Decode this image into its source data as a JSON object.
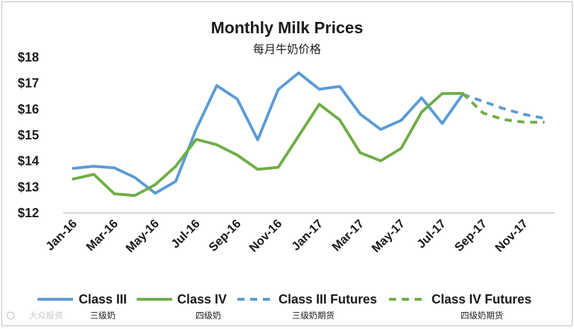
{
  "chart_data": {
    "type": "line",
    "title": "Monthly Milk Prices",
    "subtitle": "每月牛奶价格",
    "ylim": [
      12,
      18
    ],
    "y_ticks": [
      "$12",
      "$13",
      "$14",
      "$15",
      "$16",
      "$17",
      "$18"
    ],
    "y_tick_values": [
      12,
      13,
      14,
      15,
      16,
      17,
      18
    ],
    "categories": [
      "Jan-16",
      "Feb-16",
      "Mar-16",
      "Apr-16",
      "May-16",
      "Jun-16",
      "Jul-16",
      "Aug-16",
      "Sep-16",
      "Oct-16",
      "Nov-16",
      "Dec-16",
      "Jan-17",
      "Feb-17",
      "Mar-17",
      "Apr-17",
      "May-17",
      "Jun-17",
      "Jul-17",
      "Aug-17",
      "Sep-17",
      "Oct-17",
      "Nov-17",
      "Dec-17"
    ],
    "x_tick_labels": [
      "Jan-16",
      "Mar-16",
      "May-16",
      "Jul-16",
      "Sep-16",
      "Nov-16",
      "Jan-17",
      "Mar-17",
      "May-17",
      "Jul-17",
      "Sep-17",
      "Nov-17"
    ],
    "grid": false,
    "legend_position": "bottom",
    "series": [
      {
        "name": "Class III",
        "name_cn": "三级奶",
        "color": "#5B9BD5",
        "dashed": false,
        "values": [
          13.72,
          13.8,
          13.74,
          13.37,
          12.76,
          13.22,
          15.24,
          16.91,
          16.39,
          14.82,
          16.76,
          17.4,
          16.77,
          16.88,
          15.81,
          15.22,
          15.57,
          16.44,
          15.45,
          16.57,
          null,
          null,
          null,
          null
        ]
      },
      {
        "name": "Class IV",
        "name_cn": "四级奶",
        "color": "#70AD47",
        "dashed": false,
        "values": [
          13.31,
          13.49,
          12.74,
          12.67,
          13.09,
          13.8,
          14.84,
          14.63,
          14.23,
          13.68,
          13.76,
          14.97,
          16.19,
          15.59,
          14.32,
          14.01,
          14.49,
          15.89,
          16.6,
          16.61,
          null,
          null,
          null,
          null
        ]
      },
      {
        "name": "Class III Futures",
        "name_cn": "三级奶期货",
        "color": "#5B9BD5",
        "dashed": true,
        "values": [
          null,
          null,
          null,
          null,
          null,
          null,
          null,
          null,
          null,
          null,
          null,
          null,
          null,
          null,
          null,
          null,
          null,
          null,
          null,
          16.57,
          16.3,
          16.02,
          15.8,
          15.65
        ]
      },
      {
        "name": "Class IV Futures",
        "name_cn": "四级奶期货",
        "color": "#70AD47",
        "dashed": true,
        "values": [
          null,
          null,
          null,
          null,
          null,
          null,
          null,
          null,
          null,
          null,
          null,
          null,
          null,
          null,
          null,
          null,
          null,
          null,
          null,
          16.61,
          15.85,
          15.6,
          15.5,
          15.5
        ]
      }
    ]
  },
  "watermark": "大众投资"
}
